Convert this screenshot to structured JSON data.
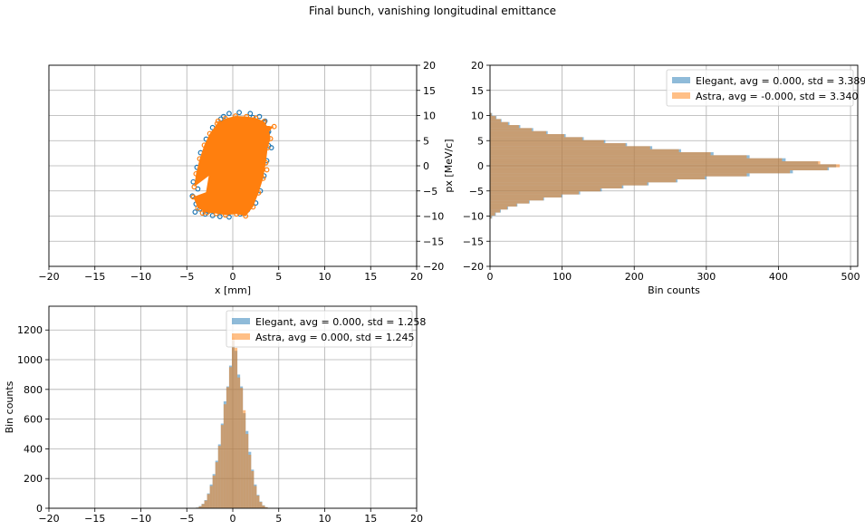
{
  "figure": {
    "title": "Final bunch, vanishing longitudinal emittance"
  },
  "colors": {
    "elegant": "#1f77b4",
    "astra": "#ff7f0e",
    "grid": "#b0b0b0"
  },
  "chart_data": [
    {
      "id": "scatter",
      "type": "scatter",
      "title": "",
      "xlabel": "x [mm]",
      "ylabel": "px [MeV/c]",
      "xlim": [
        -20,
        20
      ],
      "ylim": [
        -20,
        20
      ],
      "xticks": [
        -20,
        -15,
        -10,
        -5,
        0,
        5,
        10,
        15,
        20
      ],
      "yticks": [
        -20,
        -15,
        -10,
        -5,
        0,
        5,
        10,
        15,
        20
      ],
      "y_axis_side": "right",
      "grid": true,
      "series": [
        {
          "marker": "open-circle",
          "points": [
            [
              -4.1,
              -9.2
            ],
            [
              -3.6,
              -8.6
            ],
            [
              -3.0,
              -9.6
            ],
            [
              -2.2,
              -9.9
            ],
            [
              -1.4,
              -10.1
            ],
            [
              -0.4,
              -10.2
            ],
            [
              0.8,
              -9.6
            ],
            [
              1.6,
              -8.8
            ],
            [
              2.5,
              -7.4
            ],
            [
              3.0,
              -5.0
            ],
            [
              3.4,
              -2.0
            ],
            [
              3.7,
              1.0
            ],
            [
              3.9,
              4.0
            ],
            [
              3.8,
              6.5
            ],
            [
              3.4,
              8.6
            ],
            [
              2.9,
              9.8
            ],
            [
              1.9,
              10.4
            ],
            [
              0.7,
              10.6
            ],
            [
              -0.4,
              10.4
            ],
            [
              -1.3,
              9.3
            ],
            [
              -2.2,
              7.6
            ],
            [
              -2.9,
              5.3
            ],
            [
              -3.5,
              2.6
            ],
            [
              -3.9,
              -0.3
            ],
            [
              -4.3,
              -3.2
            ],
            [
              -4.4,
              -6.0
            ],
            [
              -4.0,
              -7.6
            ],
            [
              3.5,
              8.9
            ],
            [
              3.9,
              6.8
            ],
            [
              4.2,
              3.6
            ],
            [
              -3.8,
              -4.6
            ],
            [
              -2.6,
              -9.0
            ],
            [
              2.2,
              9.6
            ],
            [
              1.2,
              -9.4
            ],
            [
              -1.0,
              9.8
            ]
          ]
        },
        {
          "marker": "open-circle",
          "points": [
            [
              -4.3,
              -6.2
            ],
            [
              -3.8,
              -8.4
            ],
            [
              -2.8,
              -9.3
            ],
            [
              -1.8,
              -9.5
            ],
            [
              -0.8,
              -9.8
            ],
            [
              0.4,
              -9.6
            ],
            [
              1.4,
              -10.0
            ],
            [
              2.2,
              -8.2
            ],
            [
              2.8,
              -5.4
            ],
            [
              3.3,
              -2.5
            ],
            [
              3.6,
              0.6
            ],
            [
              3.8,
              3.6
            ],
            [
              4.1,
              5.4
            ],
            [
              3.9,
              7.4
            ],
            [
              3.4,
              8.8
            ],
            [
              2.5,
              9.5
            ],
            [
              1.5,
              9.8
            ],
            [
              0.3,
              9.9
            ],
            [
              -0.8,
              9.4
            ],
            [
              -1.7,
              8.4
            ],
            [
              -2.5,
              6.4
            ],
            [
              -3.1,
              4.1
            ],
            [
              -3.6,
              1.4
            ],
            [
              -4.0,
              -1.6
            ],
            [
              -4.2,
              -4.2
            ],
            [
              4.5,
              7.8
            ],
            [
              -1.6,
              8.9
            ],
            [
              -3.3,
              -9.4
            ],
            [
              3.7,
              -0.8
            ]
          ]
        }
      ]
    },
    {
      "id": "px_hist",
      "type": "bar",
      "orientation": "horizontal",
      "title": "",
      "xlabel": "Bin counts",
      "ylabel": "",
      "xlim": [
        0,
        510
      ],
      "ylim": [
        -20,
        20
      ],
      "xticks": [
        0,
        100,
        200,
        300,
        400,
        500
      ],
      "yticks": [
        -20,
        -15,
        -10,
        -5,
        0,
        5,
        10,
        15,
        20
      ],
      "grid": true,
      "legend_position": "top-right",
      "bin_centers": [
        -10.2,
        -9.6,
        -9.0,
        -8.4,
        -7.8,
        -7.2,
        -6.6,
        -6.0,
        -5.4,
        -4.8,
        -4.2,
        -3.6,
        -3.0,
        -2.4,
        -1.8,
        -1.2,
        -0.6,
        0.0,
        0.6,
        1.2,
        1.8,
        2.4,
        3.0,
        3.6,
        4.2,
        4.8,
        5.4,
        6.0,
        6.6,
        7.2,
        7.8,
        8.4,
        9.0,
        9.6,
        10.2
      ],
      "series": [
        {
          "name": "Elegant, avg = 0.000, std = 3.389",
          "values": [
            3,
            8,
            15,
            25,
            38,
            55,
            75,
            100,
            125,
            155,
            185,
            220,
            260,
            300,
            360,
            420,
            470,
            480,
            455,
            410,
            360,
            310,
            265,
            225,
            190,
            160,
            130,
            105,
            80,
            60,
            42,
            27,
            16,
            9,
            3
          ]
        },
        {
          "name": "Astra, avg = -0.000, std = 3.340",
          "values": [
            2,
            7,
            14,
            24,
            37,
            54,
            74,
            99,
            123,
            153,
            183,
            218,
            258,
            298,
            356,
            416,
            468,
            485,
            458,
            405,
            356,
            306,
            262,
            222,
            188,
            158,
            128,
            103,
            78,
            58,
            40,
            25,
            15,
            8,
            2
          ]
        }
      ]
    },
    {
      "id": "x_hist",
      "type": "bar",
      "title": "",
      "xlabel": "",
      "ylabel": "Bin counts",
      "xlim": [
        -20,
        20
      ],
      "ylim": [
        0,
        1360
      ],
      "xticks": [
        -20,
        -15,
        -10,
        -5,
        0,
        5,
        10,
        15,
        20
      ],
      "yticks": [
        0,
        200,
        400,
        600,
        800,
        1000,
        1200
      ],
      "grid": true,
      "legend_position": "top-right",
      "bin_centers": [
        -3.85,
        -3.55,
        -3.25,
        -2.95,
        -2.65,
        -2.35,
        -2.05,
        -1.75,
        -1.45,
        -1.15,
        -0.85,
        -0.55,
        -0.25,
        0.05,
        0.35,
        0.65,
        0.95,
        1.25,
        1.55,
        1.85,
        2.15,
        2.45,
        2.75,
        3.05,
        3.35,
        3.65,
        3.95
      ],
      "series": [
        {
          "name": "Elegant, avg = 0.000, std = 1.258",
          "values": [
            5,
            15,
            30,
            55,
            100,
            160,
            230,
            320,
            430,
            570,
            720,
            820,
            960,
            1130,
            1060,
            900,
            820,
            640,
            520,
            380,
            260,
            160,
            90,
            45,
            20,
            8,
            3
          ]
        },
        {
          "name": "Astra, avg = 0.000, std = 1.245",
          "values": [
            4,
            12,
            28,
            52,
            95,
            150,
            220,
            310,
            420,
            560,
            700,
            815,
            950,
            1150,
            1080,
            880,
            810,
            660,
            500,
            360,
            250,
            150,
            85,
            42,
            18,
            7,
            2
          ]
        }
      ]
    }
  ]
}
